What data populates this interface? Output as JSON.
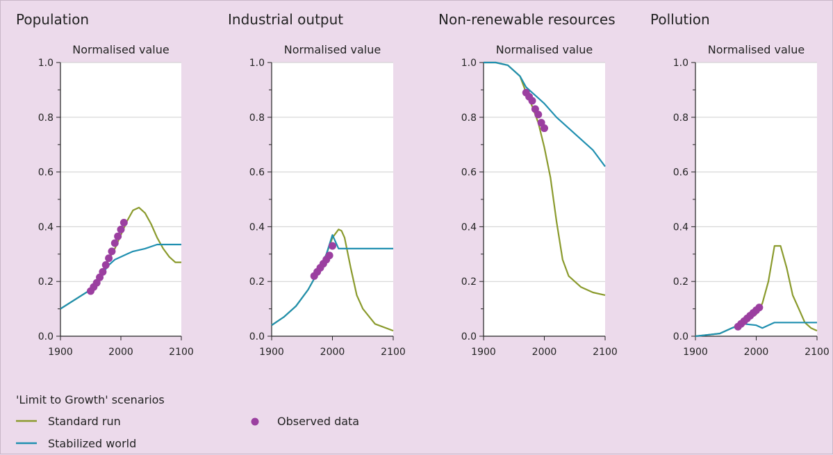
{
  "colors": {
    "background": "#ecdaeb",
    "plot_bg": "#ffffff",
    "standard_run": "#8a9a2c",
    "stabilized_world": "#1f8fb0",
    "observed": "#9b3fa0",
    "grid": "#cfcfcf"
  },
  "legend": {
    "title": "'Limit to Growth' scenarios",
    "standard_run": "Standard run",
    "stabilized_world": "Stabilized world",
    "observed": "Observed data"
  },
  "chart_data": [
    {
      "type": "line",
      "title": "Population",
      "ylabel": "Normalised value",
      "xlim": [
        1900,
        2100
      ],
      "ylim": [
        0,
        1
      ],
      "xticks": [
        "1900",
        "2000",
        "2100"
      ],
      "yticks": [
        "0.0",
        "0.2",
        "0.4",
        "0.6",
        "0.8",
        "1.0"
      ],
      "grid": true,
      "series": [
        {
          "name": "Standard run",
          "x": [
            1900,
            1950,
            1970,
            1990,
            2000,
            2010,
            2020,
            2030,
            2040,
            2050,
            2060,
            2070,
            2080,
            2090,
            2100
          ],
          "y": [
            0.1,
            0.17,
            0.24,
            0.32,
            0.37,
            0.42,
            0.46,
            0.47,
            0.45,
            0.41,
            0.36,
            0.32,
            0.29,
            0.27,
            0.27
          ]
        },
        {
          "name": "Stabilized world",
          "x": [
            1900,
            1950,
            1970,
            1980,
            1990,
            2000,
            2010,
            2020,
            2040,
            2060,
            2080,
            2100
          ],
          "y": [
            0.1,
            0.17,
            0.23,
            0.26,
            0.28,
            0.29,
            0.3,
            0.31,
            0.32,
            0.335,
            0.335,
            0.335
          ]
        },
        {
          "name": "Observed data",
          "x": [
            1950,
            1955,
            1960,
            1965,
            1970,
            1975,
            1980,
            1985,
            1990,
            1995,
            2000,
            2005
          ],
          "y": [
            0.165,
            0.18,
            0.195,
            0.215,
            0.235,
            0.26,
            0.285,
            0.31,
            0.34,
            0.365,
            0.39,
            0.415
          ]
        }
      ]
    },
    {
      "type": "line",
      "title": "Industrial output",
      "ylabel": "Normalised value",
      "xlim": [
        1900,
        2100
      ],
      "ylim": [
        0,
        1
      ],
      "xticks": [
        "1900",
        "2000",
        "2100"
      ],
      "yticks": [
        "0.0",
        "0.2",
        "0.4",
        "0.6",
        "0.8",
        "1.0"
      ],
      "grid": true,
      "series": [
        {
          "name": "Standard run",
          "x": [
            1900,
            1920,
            1940,
            1960,
            1980,
            1990,
            2000,
            2010,
            2015,
            2020,
            2030,
            2040,
            2050,
            2070,
            2100
          ],
          "y": [
            0.04,
            0.07,
            0.11,
            0.17,
            0.25,
            0.3,
            0.36,
            0.39,
            0.385,
            0.36,
            0.25,
            0.15,
            0.1,
            0.045,
            0.02
          ]
        },
        {
          "name": "Stabilized world",
          "x": [
            1900,
            1920,
            1940,
            1960,
            1980,
            1990,
            2000,
            2010,
            2020,
            2050,
            2100
          ],
          "y": [
            0.04,
            0.07,
            0.11,
            0.17,
            0.25,
            0.3,
            0.37,
            0.32,
            0.32,
            0.32,
            0.32
          ]
        },
        {
          "name": "Observed data",
          "x": [
            1970,
            1975,
            1980,
            1985,
            1990,
            1995,
            2000
          ],
          "y": [
            0.22,
            0.235,
            0.25,
            0.265,
            0.28,
            0.295,
            0.33
          ]
        }
      ]
    },
    {
      "type": "line",
      "title": "Non-renewable resources",
      "ylabel": "Normalised value",
      "xlim": [
        1900,
        2100
      ],
      "ylim": [
        0,
        1
      ],
      "xticks": [
        "1900",
        "2000",
        "2100"
      ],
      "yticks": [
        "0.0",
        "0.2",
        "0.4",
        "0.6",
        "0.8",
        "1.0"
      ],
      "grid": true,
      "series": [
        {
          "name": "Standard run",
          "x": [
            1900,
            1920,
            1940,
            1960,
            1970,
            1980,
            1990,
            2000,
            2010,
            2020,
            2030,
            2040,
            2060,
            2080,
            2100
          ],
          "y": [
            1.0,
            1.0,
            0.99,
            0.95,
            0.89,
            0.84,
            0.78,
            0.69,
            0.58,
            0.42,
            0.28,
            0.22,
            0.18,
            0.16,
            0.15
          ]
        },
        {
          "name": "Stabilized world",
          "x": [
            1900,
            1920,
            1940,
            1960,
            1970,
            1980,
            1990,
            2000,
            2020,
            2040,
            2060,
            2080,
            2100
          ],
          "y": [
            1.0,
            1.0,
            0.99,
            0.95,
            0.91,
            0.89,
            0.87,
            0.85,
            0.8,
            0.76,
            0.72,
            0.68,
            0.62
          ]
        },
        {
          "name": "Observed data",
          "x": [
            1970,
            1975,
            1980,
            1985,
            1990,
            1995,
            2000
          ],
          "y": [
            0.89,
            0.875,
            0.86,
            0.83,
            0.81,
            0.78,
            0.76
          ]
        }
      ]
    },
    {
      "type": "line",
      "title": "Pollution",
      "ylabel": "Normalised value",
      "xlim": [
        1900,
        2100
      ],
      "ylim": [
        0,
        1
      ],
      "xticks": [
        "1900",
        "2000",
        "2100"
      ],
      "yticks": [
        "0.0",
        "0.2",
        "0.4",
        "0.6",
        "0.8",
        "1.0"
      ],
      "grid": true,
      "series": [
        {
          "name": "Standard run",
          "x": [
            1900,
            1940,
            1960,
            1980,
            2000,
            2010,
            2020,
            2030,
            2040,
            2050,
            2060,
            2070,
            2080,
            2090,
            2100
          ],
          "y": [
            0.0,
            0.01,
            0.03,
            0.05,
            0.08,
            0.12,
            0.2,
            0.33,
            0.33,
            0.25,
            0.15,
            0.1,
            0.05,
            0.03,
            0.02
          ]
        },
        {
          "name": "Stabilized world",
          "x": [
            1900,
            1940,
            1960,
            1980,
            2000,
            2010,
            2020,
            2030,
            2040,
            2060,
            2080,
            2100
          ],
          "y": [
            0.0,
            0.01,
            0.03,
            0.045,
            0.04,
            0.03,
            0.04,
            0.05,
            0.05,
            0.05,
            0.05,
            0.05
          ]
        },
        {
          "name": "Observed data",
          "x": [
            1970,
            1975,
            1980,
            1985,
            1990,
            1995,
            2000,
            2005
          ],
          "y": [
            0.035,
            0.045,
            0.055,
            0.065,
            0.075,
            0.085,
            0.095,
            0.105
          ]
        }
      ]
    }
  ]
}
